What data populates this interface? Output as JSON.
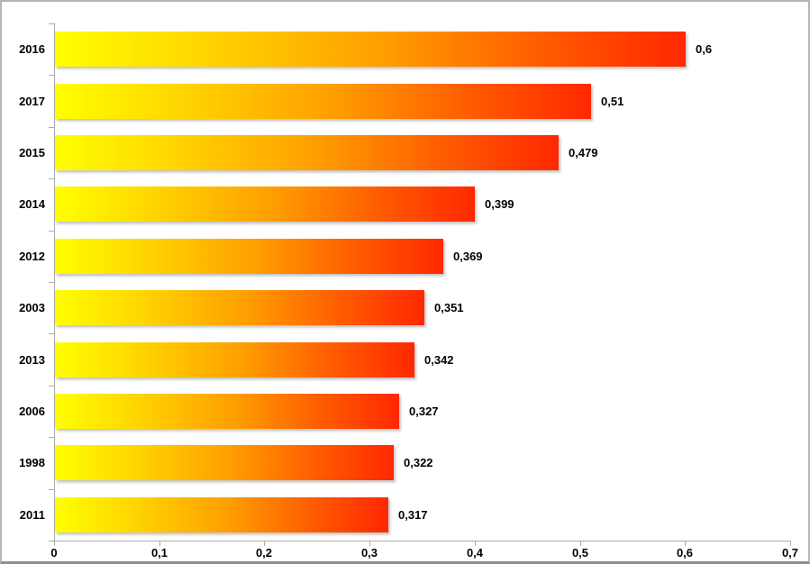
{
  "chart_data": {
    "type": "bar",
    "orientation": "horizontal",
    "title": "",
    "xlabel": "",
    "ylabel": "",
    "categories": [
      "2016",
      "2017",
      "2015",
      "2014",
      "2012",
      "2003",
      "2013",
      "2006",
      "1998",
      "2011"
    ],
    "values": [
      0.6,
      0.51,
      0.479,
      0.399,
      0.369,
      0.351,
      0.342,
      0.327,
      0.322,
      0.317
    ],
    "value_labels": [
      "0,6",
      "0,51",
      "0,479",
      "0,399",
      "0,369",
      "0,351",
      "0,342",
      "0,327",
      "0,322",
      "0,317"
    ],
    "xlim": [
      0,
      0.7
    ],
    "x_ticks": [
      0,
      0.1,
      0.2,
      0.3,
      0.4,
      0.5,
      0.6,
      0.7
    ],
    "x_tick_labels": [
      "0",
      "0,1",
      "0,2",
      "0,3",
      "0,4",
      "0,5",
      "0,6",
      "0,7"
    ],
    "grid": false,
    "legend": false,
    "colors": {
      "bar_gradient_start": "#FFFF00",
      "bar_gradient_mid": "#FF9E00",
      "bar_gradient_end": "#FF2800",
      "axis": "#ABABAB",
      "text": "#000000",
      "frame_border": "#B5B5B5"
    }
  }
}
